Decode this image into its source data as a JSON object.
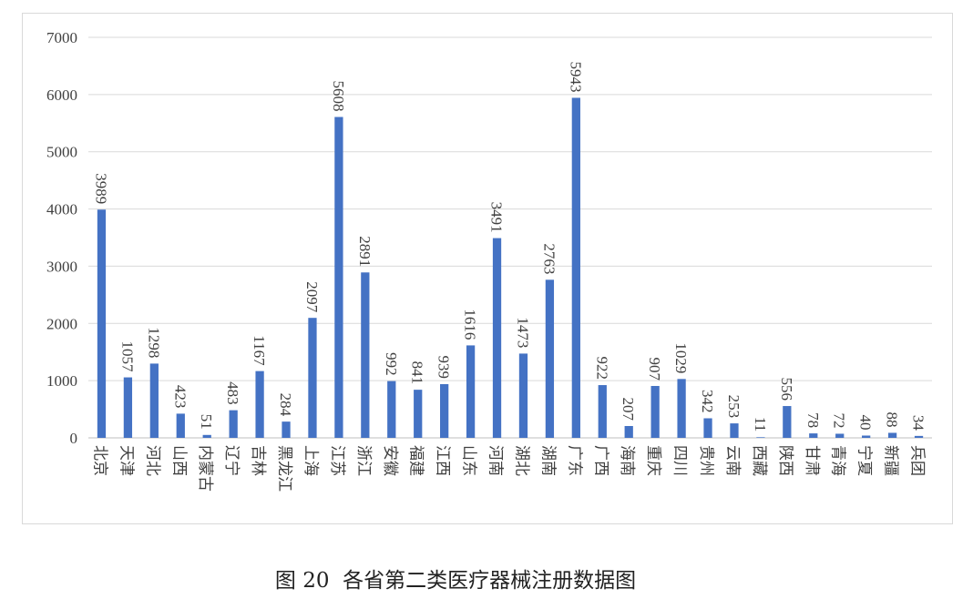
{
  "chart_data": {
    "type": "bar",
    "title": "",
    "xlabel": "",
    "ylabel": "",
    "ylim": [
      0,
      7000
    ],
    "yticks": [
      0,
      1000,
      2000,
      3000,
      4000,
      5000,
      6000,
      7000
    ],
    "grid": true,
    "legend": "none",
    "bar_color": "#4472C4",
    "categories": [
      "北京",
      "天津",
      "河北",
      "山西",
      "内蒙古",
      "辽宁",
      "吉林",
      "黑龙江",
      "上海",
      "江苏",
      "浙江",
      "安徽",
      "福建",
      "江西",
      "山东",
      "河南",
      "湖北",
      "湖南",
      "广东",
      "广西",
      "海南",
      "重庆",
      "四川",
      "贵州",
      "云南",
      "西藏",
      "陕西",
      "甘肃",
      "青海",
      "宁夏",
      "新疆",
      "兵团"
    ],
    "values": [
      3989,
      1057,
      1298,
      423,
      51,
      483,
      1167,
      284,
      2097,
      5608,
      2891,
      992,
      841,
      939,
      1616,
      3491,
      1473,
      2763,
      5943,
      922,
      207,
      907,
      1029,
      342,
      253,
      11,
      556,
      78,
      72,
      40,
      88,
      34
    ]
  },
  "caption": "图 20  各省第二类医疗器械注册数据图"
}
